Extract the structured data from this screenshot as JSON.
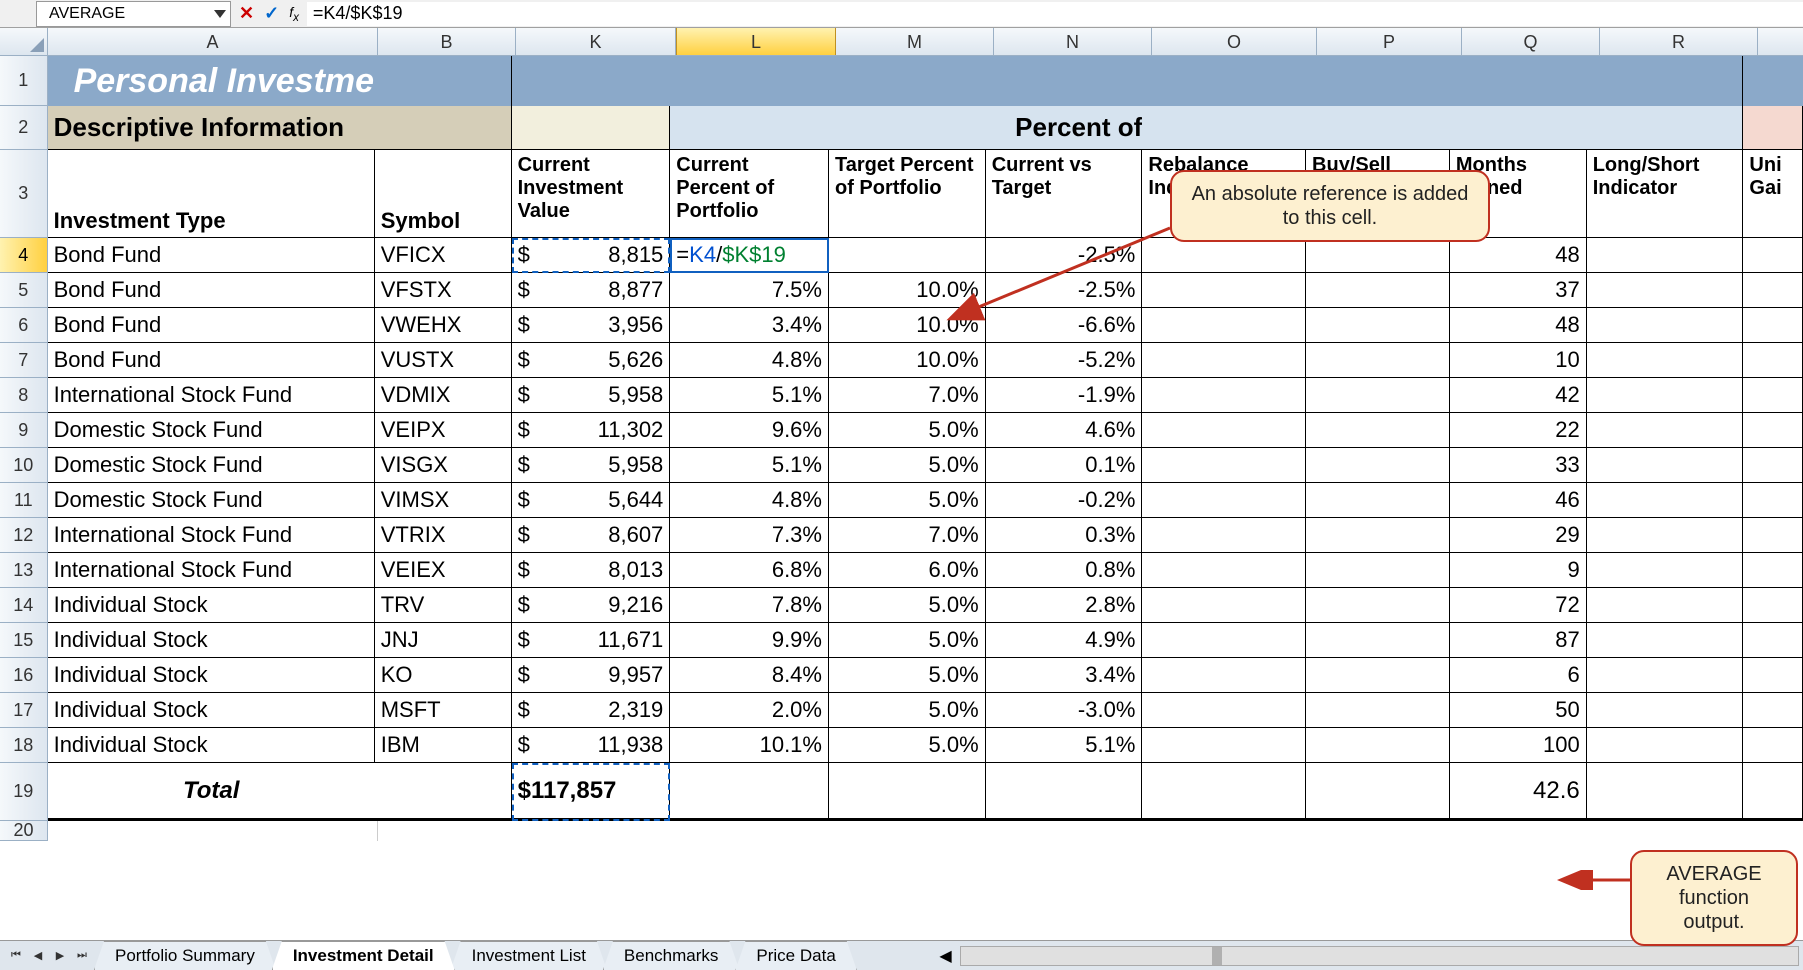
{
  "nameBox": "AVERAGE",
  "formula": "=K4/$K$19",
  "title": "Personal Investment",
  "section1": "Descriptive Information",
  "section2": "Percent of Portfolio",
  "headers": {
    "A": "Investment Type",
    "B": "Symbol",
    "K": "Current Investment Value",
    "L": "Current Percent of Portfolio",
    "M": "Target Percent of Portfolio",
    "N": "Current vs Target",
    "O": "Rebalance Indicator",
    "P": "Buy/Sell Indicator",
    "Q": "Months Owned",
    "R": "Long/Short Indicator",
    "S": "Unrealized Gain"
  },
  "colLetters": [
    "A",
    "B",
    "K",
    "L",
    "M",
    "N",
    "O",
    "P",
    "Q",
    "R"
  ],
  "editingCell": {
    "prefix": "=",
    "ref1": "K4",
    "sep": "/",
    "ref2": "$K$19"
  },
  "rows": [
    {
      "n": 4,
      "type": "Bond Fund",
      "sym": "VFICX",
      "val": "8,815",
      "pct": "",
      "tgt": "",
      "diff": "-2.5%",
      "mo": "48"
    },
    {
      "n": 5,
      "type": "Bond Fund",
      "sym": "VFSTX",
      "val": "8,877",
      "pct": "7.5%",
      "tgt": "10.0%",
      "diff": "-2.5%",
      "mo": "37"
    },
    {
      "n": 6,
      "type": "Bond Fund",
      "sym": "VWEHX",
      "val": "3,956",
      "pct": "3.4%",
      "tgt": "10.0%",
      "diff": "-6.6%",
      "mo": "48"
    },
    {
      "n": 7,
      "type": "Bond Fund",
      "sym": "VUSTX",
      "val": "5,626",
      "pct": "4.8%",
      "tgt": "10.0%",
      "diff": "-5.2%",
      "mo": "10"
    },
    {
      "n": 8,
      "type": "International Stock Fund",
      "sym": "VDMIX",
      "val": "5,958",
      "pct": "5.1%",
      "tgt": "7.0%",
      "diff": "-1.9%",
      "mo": "42"
    },
    {
      "n": 9,
      "type": "Domestic Stock Fund",
      "sym": "VEIPX",
      "val": "11,302",
      "pct": "9.6%",
      "tgt": "5.0%",
      "diff": "4.6%",
      "mo": "22"
    },
    {
      "n": 10,
      "type": "Domestic Stock Fund",
      "sym": "VISGX",
      "val": "5,958",
      "pct": "5.1%",
      "tgt": "5.0%",
      "diff": "0.1%",
      "mo": "33"
    },
    {
      "n": 11,
      "type": "Domestic Stock Fund",
      "sym": "VIMSX",
      "val": "5,644",
      "pct": "4.8%",
      "tgt": "5.0%",
      "diff": "-0.2%",
      "mo": "46"
    },
    {
      "n": 12,
      "type": "International Stock Fund",
      "sym": "VTRIX",
      "val": "8,607",
      "pct": "7.3%",
      "tgt": "7.0%",
      "diff": "0.3%",
      "mo": "29"
    },
    {
      "n": 13,
      "type": "International Stock Fund",
      "sym": "VEIEX",
      "val": "8,013",
      "pct": "6.8%",
      "tgt": "6.0%",
      "diff": "0.8%",
      "mo": "9"
    },
    {
      "n": 14,
      "type": "Individual Stock",
      "sym": "TRV",
      "val": "9,216",
      "pct": "7.8%",
      "tgt": "5.0%",
      "diff": "2.8%",
      "mo": "72"
    },
    {
      "n": 15,
      "type": "Individual Stock",
      "sym": "JNJ",
      "val": "11,671",
      "pct": "9.9%",
      "tgt": "5.0%",
      "diff": "4.9%",
      "mo": "87"
    },
    {
      "n": 16,
      "type": "Individual Stock",
      "sym": "KO",
      "val": "9,957",
      "pct": "8.4%",
      "tgt": "5.0%",
      "diff": "3.4%",
      "mo": "6"
    },
    {
      "n": 17,
      "type": "Individual Stock",
      "sym": "MSFT",
      "val": "2,319",
      "pct": "2.0%",
      "tgt": "5.0%",
      "diff": "-3.0%",
      "mo": "50"
    },
    {
      "n": 18,
      "type": "Individual Stock",
      "sym": "IBM",
      "val": "11,938",
      "pct": "10.1%",
      "tgt": "5.0%",
      "diff": "5.1%",
      "mo": "100"
    }
  ],
  "total": {
    "label": "Total",
    "val": "$117,857",
    "avg": "42.6"
  },
  "tabs": [
    "Portfolio Summary",
    "Investment Detail",
    "Investment List",
    "Benchmarks",
    "Price Data"
  ],
  "callout1": "An absolute reference is added to this cell.",
  "callout2": "AVERAGE function output.",
  "colors": {
    "headerBlue": "#8ba9c9",
    "tan": "#d5ceb8",
    "cream": "#f2efdd",
    "lblue": "#d6e3ef",
    "pink": "#f5d9d0",
    "selCol": "#ffd040",
    "calloutBg": "#fdf0d0",
    "calloutBorder": "#c03020"
  }
}
